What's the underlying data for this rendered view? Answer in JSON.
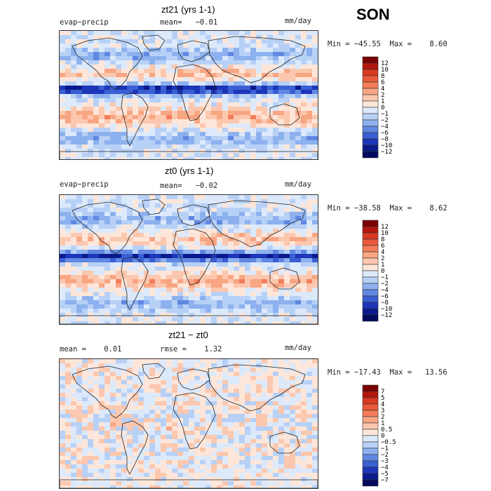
{
  "season": "SON",
  "chart_data": [
    {
      "type": "heatmap",
      "title": "zt21 (yrs 1-1)",
      "variable": "evap−precip",
      "stat_left": "",
      "mean_text": "mean=   −0.01",
      "units": "mm/day",
      "minmax_text": "Min = −45.55  Max =    8.60",
      "min": -45.55,
      "max": 8.6,
      "mean": -0.01,
      "levels": [
        "12",
        "10",
        "8",
        "6",
        "4",
        "2",
        "1",
        "0",
        "−1",
        "−2",
        "−4",
        "−6",
        "−8",
        "−10",
        "−12"
      ],
      "colors": [
        "#7a0000",
        "#b2170d",
        "#d83a20",
        "#e9593a",
        "#f37d5a",
        "#f8a582",
        "#fbc7ae",
        "#fde6d9",
        "#dce9fb",
        "#b7d0f6",
        "#8db1ee",
        "#6088e2",
        "#3a5fd3",
        "#1d36b9",
        "#0a1a8c",
        "#000a5c"
      ]
    },
    {
      "type": "heatmap",
      "title": "zt0 (yrs 1-1)",
      "variable": "evap−precip",
      "mean_text": "mean=   −0.02",
      "units": "mm/day",
      "minmax_text": "Min = −38.58  Max =    8.62",
      "min": -38.58,
      "max": 8.62,
      "mean": -0.02,
      "levels": [
        "12",
        "10",
        "8",
        "6",
        "4",
        "2",
        "1",
        "0",
        "−1",
        "−2",
        "−4",
        "−6",
        "−8",
        "−10",
        "−12"
      ],
      "colors": [
        "#7a0000",
        "#b2170d",
        "#d83a20",
        "#e9593a",
        "#f37d5a",
        "#f8a582",
        "#fbc7ae",
        "#fde6d9",
        "#dce9fb",
        "#b7d0f6",
        "#8db1ee",
        "#6088e2",
        "#3a5fd3",
        "#1d36b9",
        "#0a1a8c",
        "#000a5c"
      ]
    },
    {
      "type": "heatmap",
      "title": "zt21 − zt0",
      "mean_text": "mean =    0.01",
      "rmse_text": "rmse =    1.32",
      "units": "mm/day",
      "minmax_text": "Min = −17.43  Max =   13.56",
      "min": -17.43,
      "max": 13.56,
      "mean": 0.01,
      "rmse": 1.32,
      "levels": [
        "7",
        "5",
        "4",
        "3",
        "2",
        "1",
        "0.5",
        "0",
        "−0.5",
        "−1",
        "−2",
        "−3",
        "−4",
        "−5",
        "−7"
      ],
      "colors": [
        "#7a0000",
        "#b2170d",
        "#d83a20",
        "#e9593a",
        "#f37d5a",
        "#f8a582",
        "#fbc7ae",
        "#fde6d9",
        "#dce9fb",
        "#b7d0f6",
        "#8db1ee",
        "#6088e2",
        "#3a5fd3",
        "#1d36b9",
        "#0a1a8c",
        "#000a5c"
      ]
    }
  ]
}
